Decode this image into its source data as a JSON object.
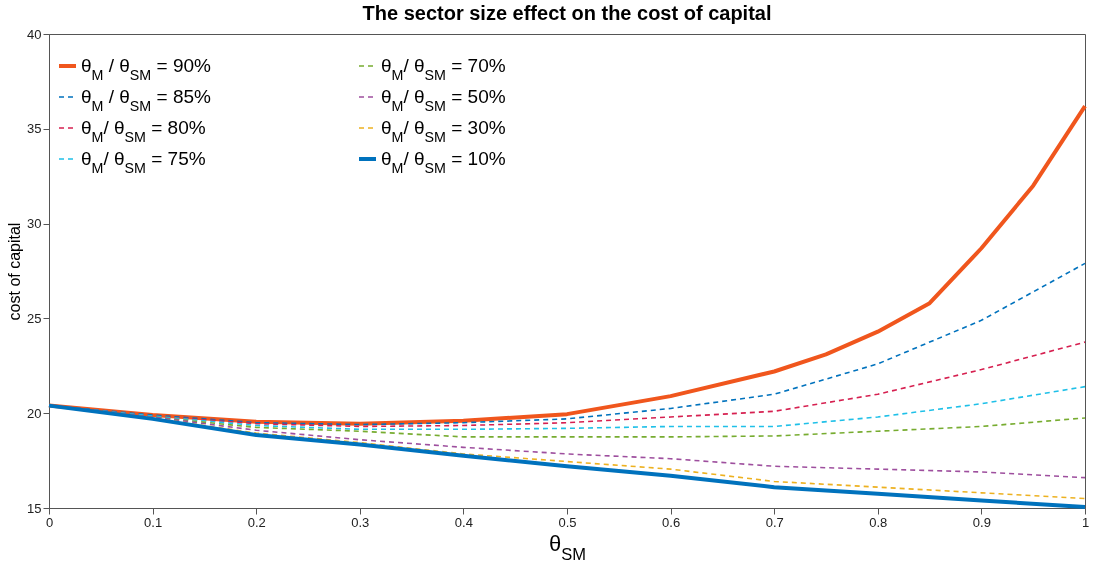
{
  "chart_data": {
    "type": "line",
    "title": "The sector size effect on the cost of capital",
    "xlabel": "θ$_{SM}$",
    "ylabel": "cost of capital",
    "x": [
      0,
      0.1,
      0.2,
      0.3,
      0.4,
      0.5,
      0.6,
      0.7,
      0.8,
      0.9,
      1
    ],
    "xlim": [
      0,
      1
    ],
    "xticks": [
      0,
      0.1,
      0.2,
      0.3,
      0.4,
      0.5,
      0.6,
      0.7,
      0.8,
      0.9,
      1
    ],
    "ylim": [
      15,
      40
    ],
    "yticks": [
      15,
      20,
      25,
      30,
      35,
      40
    ],
    "grid": false,
    "legend": "top left",
    "series": [
      {
        "name": "θ$_{M}$ / θ$_{SM}$ = 90%",
        "color": "#f0561d",
        "line_style": "solid",
        "x": [
          0,
          0.1,
          0.2,
          0.3,
          0.4,
          0.5,
          0.6,
          0.7,
          0.75,
          0.8,
          0.85,
          0.9,
          0.95,
          1
        ],
        "values": [
          20.4,
          19.9,
          19.55,
          19.45,
          19.6,
          19.95,
          20.9,
          22.2,
          23.1,
          24.3,
          25.8,
          28.7,
          32.0,
          36.2
        ]
      },
      {
        "name": "θ$_{M}$ / θ$_{SM}$ = 85%",
        "color": "#0072bd",
        "line_style": "dashed",
        "values": [
          20.4,
          19.9,
          19.5,
          19.4,
          19.5,
          19.7,
          20.25,
          21.0,
          22.6,
          24.9,
          27.9
        ]
      },
      {
        "name": "θ$_{M}$/ θ$_{SM}$ = 80%",
        "color": "#d62050",
        "line_style": "dashed",
        "values": [
          20.4,
          19.85,
          19.45,
          19.3,
          19.35,
          19.5,
          19.8,
          20.1,
          21.0,
          22.3,
          23.75
        ]
      },
      {
        "name": "θ$_{M}$/ θ$_{SM}$ = 75%",
        "color": "#1fc0e8",
        "line_style": "dashed",
        "values": [
          20.4,
          19.85,
          19.35,
          19.15,
          19.15,
          19.2,
          19.3,
          19.3,
          19.8,
          20.5,
          21.4
        ]
      },
      {
        "name": "θ$_{M}$/ θ$_{SM}$ = 70%",
        "color": "#77ac30",
        "line_style": "dashed",
        "values": [
          20.4,
          19.8,
          19.25,
          19.05,
          18.75,
          18.75,
          18.75,
          18.8,
          19.05,
          19.3,
          19.75
        ]
      },
      {
        "name": "θ$_{M}$/ θ$_{SM}$ = 50%",
        "color": "#9e4f9e",
        "line_style": "dashed",
        "values": [
          20.4,
          19.8,
          19.1,
          18.6,
          18.2,
          17.85,
          17.6,
          17.2,
          17.05,
          16.9,
          16.6
        ]
      },
      {
        "name": "θ$_{M}$/ θ$_{SM}$ = 30%",
        "color": "#edb120",
        "line_style": "dashed",
        "values": [
          20.4,
          19.75,
          18.95,
          18.45,
          17.85,
          17.45,
          17.05,
          16.4,
          16.1,
          15.8,
          15.5
        ]
      },
      {
        "name": "θ$_{M}$/ θ$_{SM}$ = 10%",
        "color": "#0072bd",
        "line_style": "solid",
        "values": [
          20.4,
          19.7,
          18.85,
          18.35,
          17.75,
          17.2,
          16.7,
          16.1,
          15.75,
          15.4,
          15.05
        ]
      }
    ]
  }
}
